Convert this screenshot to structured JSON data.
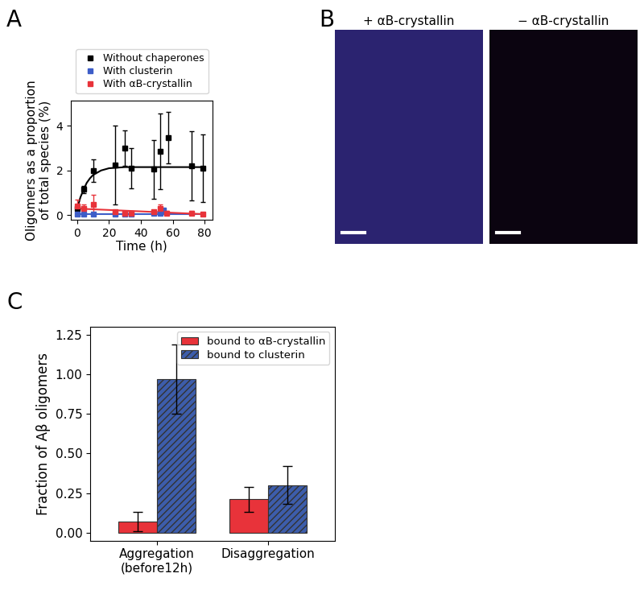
{
  "chart_data": [
    {
      "panel": "A",
      "type": "scatter",
      "x_label": "Time (h)",
      "y_label": "Oligomers as a proportion\nof total species (%)",
      "xlim": [
        -4,
        85
      ],
      "xticks": [
        0,
        20,
        40,
        60,
        80
      ],
      "ylim": [
        -0.2,
        5.1
      ],
      "yticks": [
        0,
        2,
        4
      ],
      "legend": "upper left",
      "series": [
        {
          "name": "Without chaperones",
          "color": "#000000",
          "marker": "square",
          "x": [
            0,
            4,
            10,
            24,
            30,
            34,
            48,
            52,
            57,
            72,
            79
          ],
          "values": [
            0.3,
            1.15,
            2.0,
            2.25,
            3.0,
            2.1,
            2.05,
            2.85,
            3.45,
            2.2,
            2.1
          ],
          "errors": [
            0.15,
            0.15,
            0.5,
            1.75,
            0.8,
            0.9,
            1.3,
            1.7,
            1.15,
            1.55,
            1.5
          ]
        },
        {
          "name": "With clusterin",
          "color": "#3d5dc8",
          "marker": "square",
          "x": [
            0,
            4,
            10,
            24,
            30,
            34,
            48,
            52,
            54
          ],
          "values": [
            0.05,
            0.05,
            0.05,
            0.05,
            0.05,
            0.05,
            0.1,
            0.1,
            0.25
          ],
          "errors": [
            0.03,
            0.03,
            0.03,
            0.03,
            0.03,
            0.03,
            0.05,
            0.05,
            0.05
          ]
        },
        {
          "name": "With αB-crystallin",
          "color": "#e8333a",
          "marker": "square",
          "x": [
            0,
            4,
            10,
            24,
            30,
            34,
            48,
            52,
            56,
            72,
            79
          ],
          "values": [
            0.4,
            0.3,
            0.5,
            0.15,
            0.1,
            0.1,
            0.15,
            0.3,
            0.1,
            0.1,
            0.05
          ],
          "errors": [
            0.3,
            0.2,
            0.4,
            0.1,
            0.1,
            0.1,
            0.1,
            0.2,
            0.08,
            0.08,
            0.05
          ]
        },
        {
          "type": "line",
          "color": "#000000",
          "x": [
            0,
            2,
            4,
            6,
            8,
            10,
            15,
            20,
            30,
            40,
            60,
            80
          ],
          "values": [
            0.3,
            0.8,
            1.15,
            1.45,
            1.65,
            1.8,
            2.0,
            2.1,
            2.15,
            2.15,
            2.15,
            2.15
          ]
        },
        {
          "type": "line",
          "color": "#3d5dc8",
          "x": [
            0,
            80
          ],
          "values": [
            0.05,
            0.05
          ]
        },
        {
          "type": "line",
          "color": "#e8333a",
          "x": [
            0,
            80
          ],
          "values": [
            0.3,
            0.05
          ]
        }
      ]
    },
    {
      "panel": "B",
      "type": "image",
      "images": [
        {
          "title": "+ αB-crystallin",
          "color": "#2b2370"
        },
        {
          "title": "− αB-crystallin",
          "color": "#0b0410"
        }
      ]
    },
    {
      "panel": "C",
      "type": "bar",
      "y_label": "Fraction of Aβ oligomers",
      "categories": [
        "Aggregation\n(before12h)",
        "Disaggregation"
      ],
      "ylim": [
        -0.05,
        1.3
      ],
      "yticks": [
        {
          "value": 0,
          "label": "0.00"
        },
        {
          "value": 0.25,
          "label": "0.25"
        },
        {
          "value": 0.5,
          "label": "0.50"
        },
        {
          "value": 0.75,
          "label": "0.75"
        },
        {
          "value": 1,
          "label": "1.00"
        },
        {
          "value": 1.25,
          "label": "1.25"
        }
      ],
      "legend": "upper right",
      "series": [
        {
          "name": "bound to αB-crystallin",
          "color": "#e8333a",
          "values": [
            0.07,
            0.21
          ],
          "errors": [
            0.06,
            0.08
          ]
        },
        {
          "name": "bound to clusterin",
          "color": "#3d5dab",
          "values": [
            0.97,
            0.3
          ],
          "errors": [
            0.22,
            0.12
          ]
        }
      ]
    }
  ]
}
